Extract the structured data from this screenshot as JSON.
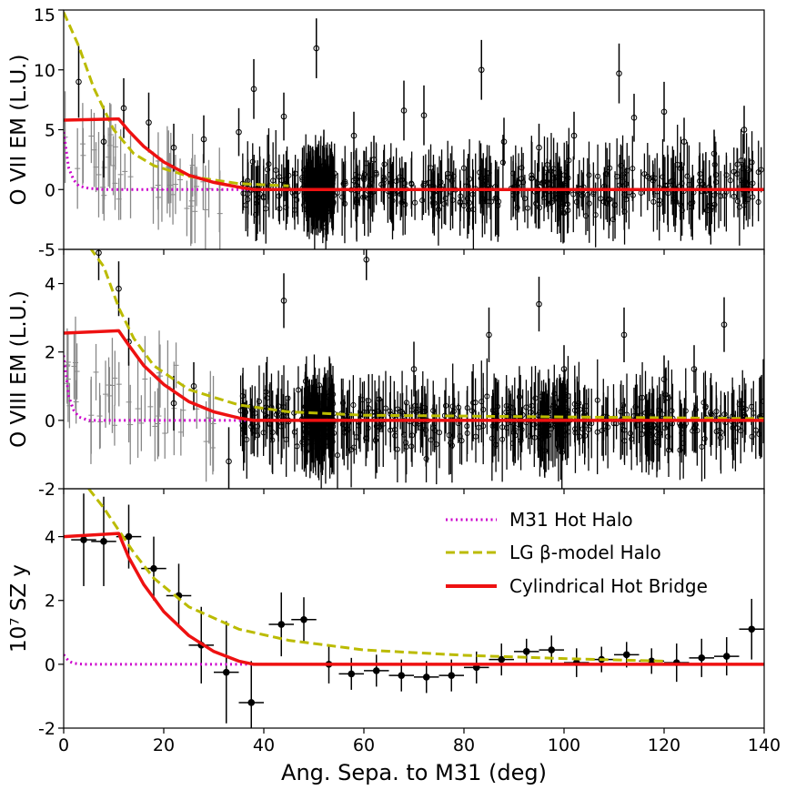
{
  "figure": {
    "xlabel": "Ang. Sepa. to M31 (deg)",
    "xticks": [
      "0",
      "20",
      "40",
      "60",
      "80",
      "100",
      "120",
      "140"
    ],
    "legend": {
      "items": [
        {
          "label": "M31 Hot Halo",
          "color": "#cc00cc",
          "style": "dotted"
        },
        {
          "label": "LG β-model Halo",
          "color": "#bbbb00",
          "style": "dashed"
        },
        {
          "label": "Cylindrical Hot Bridge",
          "color": "#ee1111",
          "style": "solid"
        }
      ]
    }
  },
  "chart_data": [
    {
      "type": "scatter",
      "title": "",
      "ylabel": "O VII EM (L.U.)",
      "xlim": [
        0,
        140
      ],
      "ylim": [
        -5,
        15
      ],
      "yticks": [
        "-5",
        "0",
        "5",
        "10",
        "15"
      ],
      "grid": false,
      "dense_region_note": "hundreds of open-circle points with error bars between ~35 and 140 deg, mostly scattered around 0 with spread of about -5 to 8",
      "data": [
        {
          "x": 3,
          "y": 9,
          "yerr": 3
        },
        {
          "x": 8,
          "y": 4,
          "yerr": 3
        },
        {
          "x": 12,
          "y": 6.8,
          "yerr": 2.5
        },
        {
          "x": 17,
          "y": 5.6,
          "yerr": 2.5
        },
        {
          "x": 22,
          "y": 3.5,
          "yerr": 2
        },
        {
          "x": 28,
          "y": 4.2,
          "yerr": 2
        },
        {
          "x": 35,
          "y": 4.8,
          "yerr": 2
        },
        {
          "x": 38,
          "y": 8.4,
          "yerr": 2.5
        },
        {
          "x": 44,
          "y": 6.1,
          "yerr": 2
        },
        {
          "x": 50.5,
          "y": 11.8,
          "yerr": 2.5
        },
        {
          "x": 52,
          "y": 2,
          "yerr": 3
        },
        {
          "x": 58,
          "y": 4.5,
          "yerr": 2
        },
        {
          "x": 62,
          "y": 2.5,
          "yerr": 2
        },
        {
          "x": 68,
          "y": 6.6,
          "yerr": 2.5
        },
        {
          "x": 72,
          "y": 6.2,
          "yerr": 2.5
        },
        {
          "x": 83.5,
          "y": 10,
          "yerr": 2.5
        },
        {
          "x": 88,
          "y": 4,
          "yerr": 2
        },
        {
          "x": 95,
          "y": 3.5,
          "yerr": 2
        },
        {
          "x": 102,
          "y": 4.5,
          "yerr": 2
        },
        {
          "x": 111,
          "y": 9.7,
          "yerr": 2.5
        },
        {
          "x": 114,
          "y": 6,
          "yerr": 2
        },
        {
          "x": 120,
          "y": 6.5,
          "yerr": 2.5
        },
        {
          "x": 124,
          "y": 4,
          "yerr": 2
        },
        {
          "x": 130,
          "y": 3,
          "yerr": 2
        },
        {
          "x": 136,
          "y": 5,
          "yerr": 2
        }
      ],
      "series": [
        {
          "name": "Cylindrical Hot Bridge",
          "color": "#ee1111",
          "x": [
            0,
            11,
            13,
            16,
            20,
            25,
            30,
            35,
            38,
            140
          ],
          "y": [
            5.8,
            5.9,
            4.9,
            3.6,
            2.3,
            1.2,
            0.6,
            0.2,
            0,
            0
          ]
        },
        {
          "name": "LG β-model Halo",
          "color": "#bbbb00",
          "x": [
            0,
            3,
            6,
            10,
            14,
            18,
            25,
            35,
            45
          ],
          "y": [
            14.8,
            12,
            8.5,
            5,
            3,
            2,
            1.1,
            0.5,
            0.3
          ]
        },
        {
          "name": "M31 Hot Halo",
          "color": "#cc00cc",
          "x": [
            0,
            1,
            2,
            3,
            5,
            8,
            140
          ],
          "y": [
            4.8,
            1.8,
            0.8,
            0.3,
            0.1,
            0,
            0
          ]
        }
      ]
    },
    {
      "type": "scatter",
      "title": "",
      "ylabel": "O VIII EM (L.U.)",
      "xlim": [
        0,
        140
      ],
      "ylim": [
        -2,
        5
      ],
      "yticks": [
        "-2",
        "0",
        "2",
        "4"
      ],
      "grid": false,
      "dense_region_note": "hundreds of open-circle points with error bars between ~35 and 140 deg, scattered around 0 with spread of about -2 to 3",
      "data": [
        {
          "x": 7,
          "y": 4.9,
          "yerr": 0.8
        },
        {
          "x": 11,
          "y": 3.85,
          "yerr": 0.8
        },
        {
          "x": 13,
          "y": 2.3,
          "yerr": 0.7
        },
        {
          "x": 22,
          "y": 0.5,
          "yerr": 0.8
        },
        {
          "x": 26,
          "y": 1,
          "yerr": 0.7
        },
        {
          "x": 33,
          "y": -1.2,
          "yerr": 1
        },
        {
          "x": 44,
          "y": 3.5,
          "yerr": 0.8
        },
        {
          "x": 60.5,
          "y": 4.7,
          "yerr": 0.6
        },
        {
          "x": 70,
          "y": 1.5,
          "yerr": 0.8
        },
        {
          "x": 85,
          "y": 2.5,
          "yerr": 0.8
        },
        {
          "x": 95,
          "y": 3.4,
          "yerr": 0.8
        },
        {
          "x": 100,
          "y": 1.5,
          "yerr": 0.7
        },
        {
          "x": 112,
          "y": 2.5,
          "yerr": 0.8
        },
        {
          "x": 120,
          "y": 1.2,
          "yerr": 0.7
        },
        {
          "x": 126,
          "y": 1.5,
          "yerr": 0.7
        },
        {
          "x": 132,
          "y": 2.8,
          "yerr": 0.8
        }
      ],
      "series": [
        {
          "name": "Cylindrical Hot Bridge",
          "color": "#ee1111",
          "x": [
            0,
            11,
            13,
            16,
            20,
            25,
            30,
            35,
            38,
            140
          ],
          "y": [
            2.55,
            2.62,
            2.2,
            1.6,
            1.05,
            0.55,
            0.25,
            0.07,
            0,
            0
          ]
        },
        {
          "name": "LG β-model Halo",
          "color": "#bbbb00",
          "x": [
            0,
            5,
            8,
            11,
            14,
            18,
            25,
            35,
            45,
            60,
            140
          ],
          "y": [
            5.2,
            5.1,
            4.5,
            3.3,
            2.4,
            1.6,
            0.9,
            0.45,
            0.25,
            0.15,
            0.05
          ]
        },
        {
          "name": "M31 Hot Halo",
          "color": "#cc00cc",
          "x": [
            0,
            1,
            2,
            3,
            5,
            140
          ],
          "y": [
            1.9,
            0.7,
            0.3,
            0.1,
            0,
            0
          ]
        }
      ]
    },
    {
      "type": "scatter",
      "title": "",
      "ylabel": "10⁷ SZ y",
      "xlim": [
        0,
        140
      ],
      "ylim": [
        -2,
        5.5
      ],
      "yticks": [
        "-2",
        "0",
        "2",
        "4"
      ],
      "grid": false,
      "legend_position": "upper-right",
      "data": [
        {
          "x": 4,
          "y": 3.9,
          "yerr": 1.45,
          "xerr": 2.5
        },
        {
          "x": 8,
          "y": 3.85,
          "yerr": 1.4,
          "xerr": 2.5
        },
        {
          "x": 13,
          "y": 4.0,
          "yerr": 1.0,
          "xerr": 2.5
        },
        {
          "x": 18,
          "y": 3.0,
          "yerr": 1.0,
          "xerr": 2.5
        },
        {
          "x": 23,
          "y": 2.15,
          "yerr": 1.0,
          "xerr": 2.5
        },
        {
          "x": 27.5,
          "y": 0.6,
          "yerr": 1.2,
          "xerr": 2.5
        },
        {
          "x": 32.5,
          "y": -0.25,
          "yerr": 1.6,
          "xerr": 2.5
        },
        {
          "x": 37.5,
          "y": -1.2,
          "yerr": 1.3,
          "xerr": 2.5
        },
        {
          "x": 43.5,
          "y": 1.25,
          "yerr": 1.0,
          "xerr": 2.5
        },
        {
          "x": 48,
          "y": 1.4,
          "yerr": 0.7,
          "xerr": 2.5
        },
        {
          "x": 53,
          "y": 0.0,
          "yerr": 0.6,
          "xerr": 2.5
        },
        {
          "x": 57.5,
          "y": -0.3,
          "yerr": 0.5,
          "xerr": 2.5
        },
        {
          "x": 62.5,
          "y": -0.2,
          "yerr": 0.5,
          "xerr": 2.5
        },
        {
          "x": 67.5,
          "y": -0.35,
          "yerr": 0.5,
          "xerr": 2.5
        },
        {
          "x": 72.5,
          "y": -0.4,
          "yerr": 0.5,
          "xerr": 2.5
        },
        {
          "x": 77.5,
          "y": -0.35,
          "yerr": 0.5,
          "xerr": 2.5
        },
        {
          "x": 82.5,
          "y": -0.1,
          "yerr": 0.5,
          "xerr": 2.5
        },
        {
          "x": 87.5,
          "y": 0.15,
          "yerr": 0.5,
          "xerr": 2.5
        },
        {
          "x": 92.5,
          "y": 0.4,
          "yerr": 0.4,
          "xerr": 2.5
        },
        {
          "x": 97.5,
          "y": 0.45,
          "yerr": 0.45,
          "xerr": 2.5
        },
        {
          "x": 102.5,
          "y": 0.05,
          "yerr": 0.45,
          "xerr": 2.5
        },
        {
          "x": 107.5,
          "y": 0.15,
          "yerr": 0.4,
          "xerr": 2.5
        },
        {
          "x": 112.5,
          "y": 0.3,
          "yerr": 0.4,
          "xerr": 2.5
        },
        {
          "x": 117.5,
          "y": 0.1,
          "yerr": 0.4,
          "xerr": 2.5
        },
        {
          "x": 122.5,
          "y": 0.05,
          "yerr": 0.6,
          "xerr": 2.5
        },
        {
          "x": 127.5,
          "y": 0.2,
          "yerr": 0.6,
          "xerr": 2.5
        },
        {
          "x": 132.5,
          "y": 0.25,
          "yerr": 0.6,
          "xerr": 2.5
        },
        {
          "x": 137.5,
          "y": 1.1,
          "yerr": 0.95,
          "xerr": 2.5
        }
      ],
      "series": [
        {
          "name": "Cylindrical Hot Bridge",
          "color": "#ee1111",
          "x": [
            0,
            11,
            13,
            16,
            20,
            25,
            30,
            35,
            38,
            140
          ],
          "y": [
            4.0,
            4.1,
            3.35,
            2.5,
            1.65,
            0.9,
            0.4,
            0.1,
            0,
            0
          ]
        },
        {
          "name": "LG β-model Halo",
          "color": "#bbbb00",
          "x": [
            5,
            8,
            11,
            14,
            18,
            25,
            35,
            45,
            60,
            80,
            100,
            120
          ],
          "y": [
            5.5,
            4.9,
            4.2,
            3.5,
            2.7,
            1.8,
            1.1,
            0.75,
            0.45,
            0.28,
            0.18,
            0.1
          ]
        },
        {
          "name": "M31 Hot Halo",
          "color": "#cc00cc",
          "x": [
            0,
            1,
            2,
            4,
            140
          ],
          "y": [
            0.3,
            0.1,
            0.03,
            0,
            0
          ]
        }
      ]
    }
  ]
}
